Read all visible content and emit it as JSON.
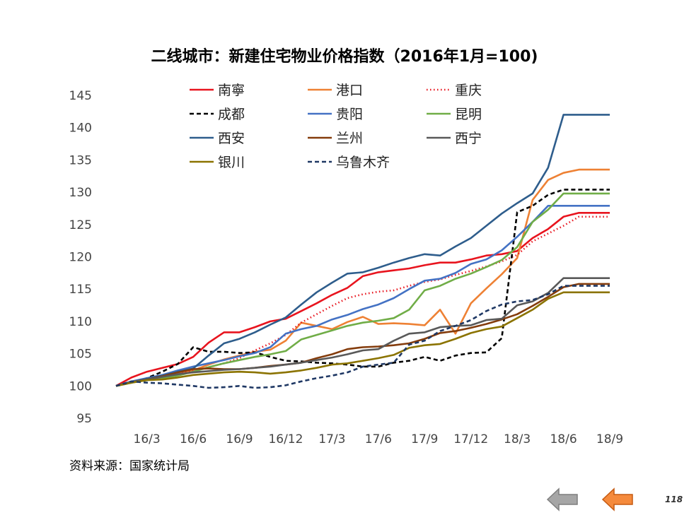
{
  "page": {
    "source_note": "资料来源：国家统计局",
    "page_number": "118"
  },
  "chart_data": {
    "type": "line",
    "title": "二线城市：新建住宅物业价格指数（2016年1月=100)",
    "xlabel": "",
    "ylabel": "",
    "ylim": [
      95,
      145
    ],
    "yticks": [
      95,
      100,
      105,
      110,
      115,
      120,
      125,
      130,
      135,
      140,
      145
    ],
    "grid": false,
    "legend_position": "top",
    "x": [
      "16/1",
      "16/2",
      "16/3",
      "16/4",
      "16/5",
      "16/6",
      "16/7",
      "16/8",
      "16/9",
      "16/10",
      "16/11",
      "16/12",
      "17/1",
      "17/2",
      "17/3",
      "17/4",
      "17/5",
      "17/6",
      "17/7",
      "17/8",
      "17/9",
      "17/10",
      "17/11",
      "17/12",
      "18/1",
      "18/2",
      "18/3",
      "18/4",
      "18/5",
      "18/6",
      "18/7",
      "18/8",
      "18/9"
    ],
    "xtick_labels": [
      "16/3",
      "16/6",
      "16/9",
      "16/12",
      "17/3",
      "17/6",
      "17/9",
      "17/12",
      "18/3",
      "18/6",
      "18/9"
    ],
    "series": [
      {
        "name": "南寧",
        "color": "#e8141e",
        "dash": "solid",
        "values": [
          100,
          101.3,
          102.2,
          102.8,
          103.4,
          104.5,
          106.7,
          108.3,
          108.3,
          109.1,
          110.0,
          110.4,
          111.6,
          112.8,
          114.1,
          115.2,
          117.0,
          117.6,
          117.9,
          118.2,
          118.7,
          119.1,
          119.1,
          119.6,
          120.2,
          120.4,
          120.9,
          122.9,
          124.3,
          126.2,
          126.8,
          126.8,
          126.8
        ]
      },
      {
        "name": "港口",
        "color": "#ee8134",
        "dash": "solid",
        "values": [
          100,
          100.6,
          101.0,
          101.3,
          101.8,
          102.4,
          103.3,
          104.1,
          104.7,
          105.3,
          105.6,
          107.0,
          109.8,
          109.3,
          108.8,
          109.9,
          110.7,
          109.6,
          109.7,
          109.6,
          109.4,
          111.8,
          108.1,
          112.8,
          115.1,
          117.3,
          119.8,
          128.8,
          131.9,
          133.0,
          133.5,
          133.5,
          133.5
        ]
      },
      {
        "name": "重庆",
        "color": "#e8141e",
        "dash": "dot",
        "values": [
          100,
          100.5,
          101.0,
          101.3,
          101.8,
          102.3,
          102.9,
          103.5,
          104.3,
          105.5,
          106.6,
          107.9,
          109.8,
          111.1,
          112.4,
          113.6,
          114.2,
          114.6,
          114.8,
          115.5,
          116.1,
          116.5,
          117.2,
          117.8,
          118.5,
          119.3,
          120.3,
          122.4,
          123.6,
          124.8,
          126.2,
          126.2,
          126.2
        ]
      },
      {
        "name": "成都",
        "color": "#000000",
        "dash": "dash",
        "values": [
          100,
          100.5,
          101.2,
          102.2,
          103.4,
          106.0,
          105.3,
          105.3,
          105.1,
          105.2,
          104.5,
          103.9,
          103.8,
          103.6,
          103.5,
          103.3,
          103.0,
          103.0,
          103.6,
          103.9,
          104.5,
          103.9,
          104.7,
          105.1,
          105.2,
          107.4,
          126.9,
          127.9,
          129.6,
          130.4,
          130.4,
          130.4,
          130.4
        ]
      },
      {
        "name": "贵阳",
        "color": "#4472c4",
        "dash": "solid",
        "values": [
          100,
          100.7,
          101.2,
          101.7,
          102.4,
          103.0,
          103.5,
          104.0,
          104.6,
          105.1,
          106.0,
          108.1,
          108.8,
          109.3,
          110.3,
          111.0,
          111.9,
          112.6,
          113.6,
          115.0,
          116.3,
          116.6,
          117.5,
          118.9,
          119.6,
          121.0,
          123.1,
          125.4,
          127.9,
          127.9,
          127.9,
          127.9,
          127.9
        ]
      },
      {
        "name": "昆明",
        "color": "#70ad47",
        "dash": "solid",
        "values": [
          100,
          100.5,
          100.9,
          101.2,
          101.6,
          102.2,
          102.9,
          103.5,
          104.0,
          104.5,
          104.9,
          105.4,
          107.2,
          107.9,
          108.6,
          109.3,
          109.8,
          110.1,
          110.5,
          111.8,
          114.8,
          115.5,
          116.6,
          117.4,
          118.4,
          119.5,
          121.5,
          125.4,
          127.3,
          129.8,
          129.8,
          129.8,
          129.8
        ]
      },
      {
        "name": "西安",
        "color": "#2e5d8c",
        "dash": "solid",
        "values": [
          100,
          100.6,
          101.1,
          101.6,
          102.2,
          102.7,
          104.7,
          106.6,
          107.3,
          108.3,
          109.5,
          110.6,
          112.6,
          114.5,
          116.0,
          117.4,
          117.6,
          118.3,
          119.1,
          119.8,
          120.4,
          120.2,
          121.6,
          122.9,
          124.8,
          126.7,
          128.3,
          129.8,
          133.8,
          142.0,
          142.0,
          142.0,
          142.0
        ]
      },
      {
        "name": "兰州",
        "color": "#843c0c",
        "dash": "solid",
        "values": [
          100,
          100.6,
          101.0,
          101.5,
          102.1,
          102.6,
          102.7,
          102.6,
          102.6,
          102.8,
          103.1,
          103.3,
          103.6,
          104.3,
          104.9,
          105.7,
          106.0,
          106.1,
          106.3,
          106.6,
          107.3,
          108.2,
          108.5,
          109.0,
          109.6,
          110.3,
          111.1,
          112.4,
          113.8,
          115.3,
          115.8,
          115.8,
          115.8
        ]
      },
      {
        "name": "西宁",
        "color": "#595959",
        "dash": "solid",
        "values": [
          100,
          100.6,
          101.0,
          101.4,
          101.8,
          102.1,
          102.3,
          102.5,
          102.6,
          102.8,
          103.0,
          103.3,
          103.6,
          104.0,
          104.4,
          104.9,
          105.5,
          105.7,
          107.0,
          108.1,
          108.3,
          109.1,
          109.3,
          109.4,
          110.2,
          110.4,
          112.5,
          113.1,
          114.4,
          116.7,
          116.7,
          116.7,
          116.7
        ]
      },
      {
        "name": "银川",
        "color": "#8b7300",
        "dash": "solid",
        "values": [
          100,
          100.5,
          100.9,
          101.0,
          101.3,
          101.7,
          101.9,
          102.1,
          102.2,
          102.1,
          101.9,
          102.1,
          102.4,
          102.8,
          103.3,
          103.5,
          103.9,
          104.3,
          104.8,
          105.9,
          106.3,
          106.5,
          107.3,
          108.2,
          108.8,
          109.2,
          110.5,
          111.8,
          113.5,
          114.5,
          114.5,
          114.5,
          114.5
        ]
      },
      {
        "name": "乌鲁木齐",
        "color": "#1f3864",
        "dash": "dash",
        "values": [
          100,
          100.7,
          100.5,
          100.4,
          100.2,
          100.0,
          99.7,
          99.8,
          100.0,
          99.7,
          99.8,
          100.1,
          100.7,
          101.2,
          101.6,
          102.1,
          103.0,
          103.3,
          103.6,
          106.4,
          107.0,
          108.5,
          109.3,
          110.2,
          111.6,
          112.6,
          113.1,
          113.3,
          114.2,
          115.5,
          115.5,
          115.5,
          115.5
        ]
      }
    ]
  }
}
